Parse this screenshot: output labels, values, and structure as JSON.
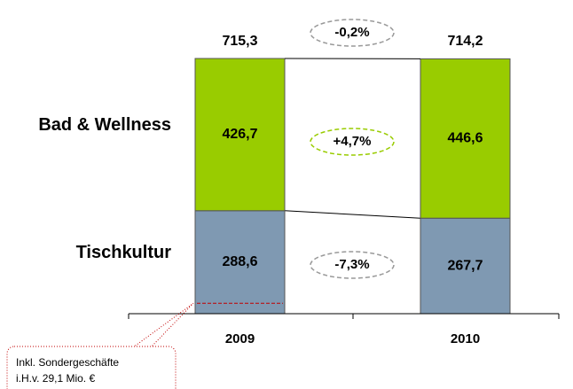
{
  "chart_data": {
    "type": "stacked_bar",
    "categories": [
      "2009",
      "2010"
    ],
    "series": [
      {
        "name": "Tischkultur",
        "color": "#7f99b2",
        "values": [
          288.6,
          267.7
        ],
        "value_labels": [
          "288,6",
          "267,7"
        ]
      },
      {
        "name": "Bad & Wellness",
        "color": "#99cc00",
        "values": [
          426.7,
          446.6
        ],
        "value_labels": [
          "426,7",
          "446,6"
        ]
      }
    ],
    "totals": [
      715.3,
      714.2
    ],
    "total_labels": [
      "715,3",
      "714,2"
    ],
    "changes": [
      {
        "label": "-0,2%",
        "color": "#999999"
      },
      {
        "label": "+4,7%",
        "color": "#99cc00"
      },
      {
        "label": "-7,3%",
        "color": "#999999"
      }
    ],
    "note": {
      "lines": [
        "Inkl. Sondergeschäfte",
        "i.H.v. 29,1 Mio. €"
      ],
      "value": 29.1,
      "color": "#c00000"
    }
  }
}
